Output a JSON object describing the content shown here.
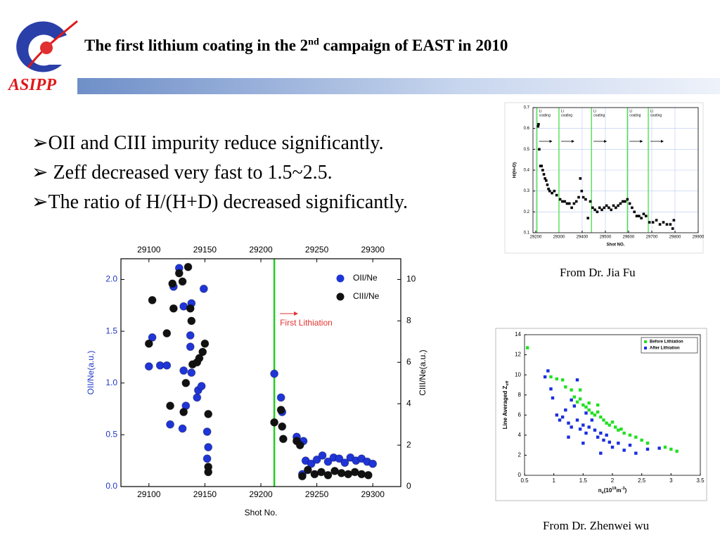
{
  "header": {
    "title_parts": [
      "The first lithium coating in the 2",
      "nd",
      " campaign of EAST in 2010"
    ],
    "logo": "ASIPP"
  },
  "bullets": [
    "➢OII and CIII impurity reduce significantly.",
    "➢ Zeff decreased very fast to 1.5~2.5.",
    "➢The ratio of H/(H+D) decreased significantly."
  ],
  "captions": [
    "From Dr. Jia Fu",
    "From Dr. Zhenwei wu"
  ],
  "chart_data": [
    {
      "type": "scatter",
      "xlabel": "Shot No.",
      "ylabel": "OII/Ne(a.u.)",
      "ylabel_color": "#1f35c8",
      "y2label": "CIII/Ne(a.u.)",
      "xlim": [
        29075,
        29325
      ],
      "xticks": [
        29100,
        29150,
        29200,
        29250,
        29300
      ],
      "x2ticks": [
        29100,
        29150,
        29200,
        29250,
        29300
      ],
      "ylim": [
        0,
        2.2
      ],
      "yticks": [
        {
          "value": 0,
          "label": "0.0"
        },
        {
          "value": 0.5,
          "label": "0.5"
        },
        {
          "value": 1,
          "label": "1.0"
        },
        {
          "value": 1.5,
          "label": "1.5"
        },
        {
          "value": 2,
          "label": "2.0"
        }
      ],
      "y2lim": [
        0,
        11
      ],
      "y2ticks": [
        0,
        2,
        4,
        6,
        8,
        10
      ],
      "vlines": [
        29212
      ],
      "vline_color": "#22cc22",
      "annotation": "First Lithiation",
      "annotation_color": "#e3342f",
      "legend": "upper right",
      "grid": false,
      "series": [
        {
          "name": "OII/Ne",
          "color": "#1f35d8",
          "x": [
            29100,
            29103,
            29110,
            29116,
            29119,
            29122,
            29127,
            29130,
            29131,
            29131,
            29133,
            29137,
            29137,
            29138,
            29138,
            29143,
            29144,
            29147,
            29149,
            29152,
            29153,
            29152,
            29212,
            29218,
            29219,
            29232,
            29238,
            29237,
            29240,
            29245,
            29250,
            29255,
            29260,
            29265,
            29270,
            29275,
            29280,
            29285,
            29290,
            29295,
            29300
          ],
          "values": [
            1.16,
            1.44,
            1.17,
            1.17,
            0.6,
            1.93,
            2.11,
            0.56,
            1.12,
            1.74,
            0.78,
            1.35,
            1.46,
            1.77,
            1.1,
            0.86,
            0.93,
            0.97,
            1.91,
            0.53,
            0.38,
            0.27,
            1.09,
            0.86,
            0.72,
            0.48,
            0.44,
            0.12,
            0.25,
            0.22,
            0.26,
            0.3,
            0.24,
            0.28,
            0.27,
            0.23,
            0.28,
            0.25,
            0.27,
            0.24,
            0.22
          ]
        },
        {
          "name": "CIII/Ne",
          "color": "#111111",
          "axis": "y2",
          "x": [
            29100,
            29103,
            29116,
            29119,
            29121,
            29122,
            29127,
            29130,
            29131,
            29133,
            29135,
            29137,
            29138,
            29139,
            29143,
            29145,
            29148,
            29150,
            29153,
            29153,
            29153,
            29212,
            29218,
            29219,
            29220,
            29232,
            29235,
            29237,
            29242,
            29248,
            29254,
            29260,
            29266,
            29272,
            29278,
            29284,
            29290,
            29296
          ],
          "values": [
            6.9,
            9.0,
            7.4,
            3.9,
            9.8,
            8.6,
            10.3,
            9.9,
            3.6,
            5.0,
            10.6,
            8.6,
            8.0,
            5.9,
            6.0,
            6.2,
            6.5,
            6.9,
            3.5,
            0.95,
            0.7,
            3.1,
            3.7,
            2.9,
            2.3,
            2.2,
            2.0,
            0.5,
            0.8,
            0.6,
            0.7,
            0.55,
            0.75,
            0.65,
            0.6,
            0.7,
            0.6,
            0.55
          ]
        }
      ]
    },
    {
      "type": "scatter",
      "xlabel": "Shot NO.",
      "ylabel": "H/(H+D)",
      "xlim": [
        29188,
        29900
      ],
      "xticks": [
        29200,
        29300,
        29400,
        29500,
        29600,
        29700,
        29800,
        29900
      ],
      "ylim": [
        0.1,
        0.7
      ],
      "yticks": [
        0.1,
        0.2,
        0.3,
        0.4,
        0.5,
        0.6,
        0.7
      ],
      "grid": true,
      "vlines": [
        29205,
        29300,
        29440,
        29595,
        29685
      ],
      "vline_color": "#33dd33",
      "annotations": [
        [
          "Li",
          "coating"
        ],
        [
          "Li",
          "coating"
        ],
        [
          "Li",
          "coating"
        ],
        [
          "Li",
          "coating"
        ],
        [
          "Li",
          "coating"
        ]
      ],
      "color": "#000000",
      "x": [
        29210,
        29212,
        29215,
        29220,
        29225,
        29230,
        29235,
        29240,
        29245,
        29250,
        29255,
        29260,
        29270,
        29280,
        29290,
        29305,
        29315,
        29325,
        29335,
        29345,
        29355,
        29365,
        29375,
        29385,
        29392,
        29398,
        29405,
        29415,
        29425,
        29435,
        29445,
        29455,
        29465,
        29475,
        29485,
        29495,
        29505,
        29515,
        29525,
        29535,
        29545,
        29555,
        29565,
        29575,
        29585,
        29595,
        29605,
        29615,
        29625,
        29635,
        29645,
        29655,
        29665,
        29675,
        29690,
        29705,
        29720,
        29735,
        29750,
        29765,
        29780,
        29790,
        29795
      ],
      "values": [
        0.61,
        0.62,
        0.5,
        0.42,
        0.42,
        0.4,
        0.38,
        0.36,
        0.35,
        0.33,
        0.31,
        0.3,
        0.29,
        0.3,
        0.28,
        0.26,
        0.25,
        0.25,
        0.24,
        0.24,
        0.22,
        0.24,
        0.25,
        0.27,
        0.36,
        0.3,
        0.27,
        0.26,
        0.17,
        0.25,
        0.22,
        0.21,
        0.2,
        0.22,
        0.21,
        0.22,
        0.23,
        0.22,
        0.21,
        0.23,
        0.22,
        0.23,
        0.24,
        0.25,
        0.25,
        0.26,
        0.24,
        0.22,
        0.2,
        0.18,
        0.18,
        0.17,
        0.19,
        0.18,
        0.15,
        0.15,
        0.16,
        0.14,
        0.15,
        0.14,
        0.14,
        0.12,
        0.16
      ]
    },
    {
      "type": "scatter",
      "xlabel": {
        "parts": [
          "n",
          "e",
          "(10",
          "19",
          "m",
          "-3",
          ")"
        ],
        "styles": [
          "normal",
          "sub",
          "normal",
          "sup",
          "normal",
          "sup",
          "normal"
        ]
      },
      "ylabel": {
        "parts": [
          "Line Averaged Z",
          "eff"
        ],
        "styles": [
          "normal",
          "sub"
        ]
      },
      "xlim": [
        0.5,
        3.5
      ],
      "xticks": [
        0.5,
        1,
        1.5,
        2,
        2.5,
        3,
        3.5
      ],
      "ylim": [
        0,
        14
      ],
      "yticks": [
        0,
        2,
        4,
        6,
        8,
        10,
        12,
        14
      ],
      "grid": false,
      "legend": "upper right",
      "legend_box": true,
      "series": [
        {
          "name": "Before Lithiation",
          "color": "#22e022",
          "x": [
            0.55,
            0.95,
            1.05,
            1.15,
            1.2,
            1.3,
            1.35,
            1.4,
            1.45,
            1.5,
            1.55,
            1.6,
            1.65,
            1.7,
            1.75,
            1.8,
            1.85,
            1.9,
            1.95,
            2.0,
            2.05,
            2.1,
            2.15,
            2.2,
            2.3,
            2.4,
            2.5,
            2.6,
            2.9,
            3.0,
            3.1,
            1.6,
            1.75,
            1.45
          ],
          "values": [
            12.7,
            9.8,
            9.6,
            9.5,
            8.8,
            8.5,
            7.8,
            7.3,
            7.6,
            7,
            6.8,
            6.5,
            6.2,
            6,
            6.3,
            5.8,
            5.5,
            5.2,
            5,
            5.3,
            4.8,
            4.5,
            4.6,
            4.2,
            4,
            3.8,
            3.5,
            3.2,
            2.8,
            2.6,
            2.4,
            7.2,
            7,
            8.5
          ]
        },
        {
          "name": "After Lithiation",
          "color": "#1a2ee0",
          "x": [
            0.85,
            0.9,
            0.95,
            0.98,
            1.05,
            1.1,
            1.15,
            1.2,
            1.25,
            1.3,
            1.35,
            1.4,
            1.4,
            1.45,
            1.5,
            1.55,
            1.6,
            1.65,
            1.7,
            1.75,
            1.8,
            1.85,
            1.9,
            1.95,
            2.0,
            2.1,
            2.2,
            2.3,
            2.4,
            2.6,
            2.8,
            1.25,
            1.5,
            1.8,
            1.3,
            1.55
          ],
          "values": [
            9.8,
            10.4,
            8.6,
            7.7,
            6,
            5.5,
            5.8,
            6.5,
            5.2,
            4.8,
            6.9,
            9.5,
            5.5,
            4.6,
            5,
            4.2,
            4.8,
            5.5,
            4.5,
            3.8,
            4.2,
            3.5,
            4,
            3.3,
            2.8,
            3.2,
            2.5,
            3,
            2.2,
            2.6,
            2.7,
            3.8,
            3.2,
            2.2,
            7.5,
            6.2
          ]
        }
      ]
    }
  ]
}
